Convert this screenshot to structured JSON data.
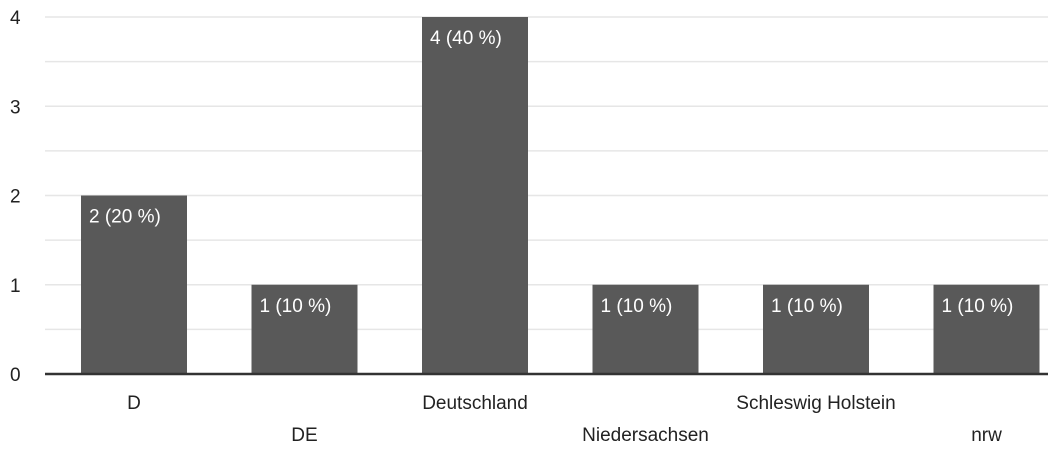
{
  "chart_data": {
    "type": "bar",
    "categories": [
      "D",
      "DE",
      "Deutschland",
      "Niedersachsen",
      "Schleswig Holstein",
      "nrw"
    ],
    "values": [
      2,
      1,
      4,
      1,
      1,
      1
    ],
    "data_labels": [
      "2 (20 %)",
      "1 (10 %)",
      "4 (40 %)",
      "1 (10 %)",
      "1 (10 %)",
      "1 (10 %)"
    ],
    "yticks": [
      "0",
      "1",
      "2",
      "3",
      "4"
    ],
    "ylim": [
      0,
      4
    ],
    "grid": true,
    "legend": "none",
    "title": "",
    "xlabel": "",
    "ylabel": ""
  },
  "colors": {
    "bar": "#595959",
    "grid": "#e6e6e6",
    "axis": "#333333",
    "background": "#ffffff"
  }
}
